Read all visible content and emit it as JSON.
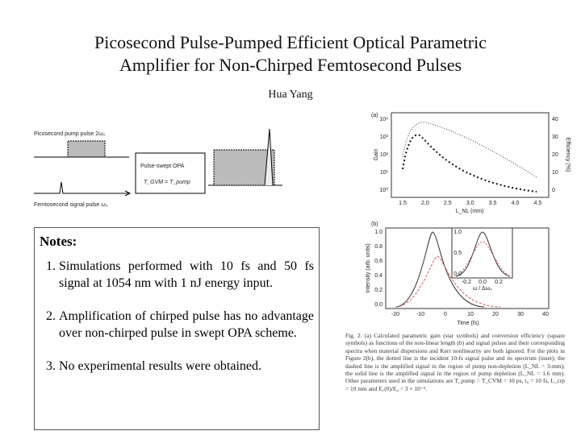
{
  "header": {
    "title_lines": [
      "Picosecond Pulse-Pumped Efficient Optical Parametric",
      "Amplifier for Non-Chirped Femtosecond Pulses"
    ],
    "author": "Hua Yang"
  },
  "diagram": {
    "pump_label": "Picosecond pump pulse 2ω₀",
    "opa_label": "Pulse-swept OPA",
    "opa_condition": "T_GVM = T_pump",
    "signal_label": "Femtosecond signal pulse ω₀"
  },
  "notes": {
    "heading": "Notes:",
    "items": [
      "Simulations performed with 10 fs and 50 fs signal at 1054 nm with 1 nJ energy input.",
      "Amplification of chirped pulse has no advantage over non-chirped pulse in swept OPA scheme.",
      "No experimental results were obtained."
    ]
  },
  "figure": {
    "panel_a": {
      "label": "(a)",
      "y_label": "Gain",
      "y2_label": "Efficiency (%)",
      "x_label": "L_NL (mm)",
      "yticks": [
        "10⁴",
        "10³",
        "10²",
        "10¹",
        "10⁰"
      ],
      "y2ticks": [
        "40",
        "30",
        "20",
        "10",
        "0"
      ],
      "xticks": [
        "1.5",
        "2.0",
        "2.5",
        "3.0",
        "3.5",
        "4.0",
        "4.5"
      ]
    },
    "panel_b": {
      "label": "(b)",
      "y_label": "Intensity (arb. units)",
      "x_label": "Time (fs)",
      "yticks": [
        "1.0",
        "0.8",
        "0.6",
        "0.4",
        "0.2",
        "0.0"
      ],
      "xticks": [
        "-20",
        "-10",
        "0",
        "10",
        "20",
        "30",
        "40"
      ],
      "inset_yticks": [
        "1.0",
        "0.5",
        "0.0"
      ],
      "inset_xticks": [
        "-0.2",
        "0.0",
        "0.2"
      ],
      "inset_x_label": "ω / Δω₀"
    },
    "caption": "Fig. 2. (a) Calculated parametric gain (star symbols) and conversion efficiency (square symbols) as functions of the non-linear length (b) and signal pulses and their corresponding spectra when material dispersions and Kerr nonlinearity are both ignored. For the plots in Figure 2(b), the dotted line is the incident 10-fs signal pulse and its spectrum (inset); the dashed line is the amplified signal in the region of pump non-depletion (L_NL = 3-mm); the solid line is the amplified signal in the region of pump depletion (L_NL = 1.6 mm). Other parameters used in the simulations are T_pump = T_CVM = 10 ps, t₀ = 10 fs, L_crp = 10 mm and E₁(0)/E₀ = 3 × 10⁻⁵."
  }
}
